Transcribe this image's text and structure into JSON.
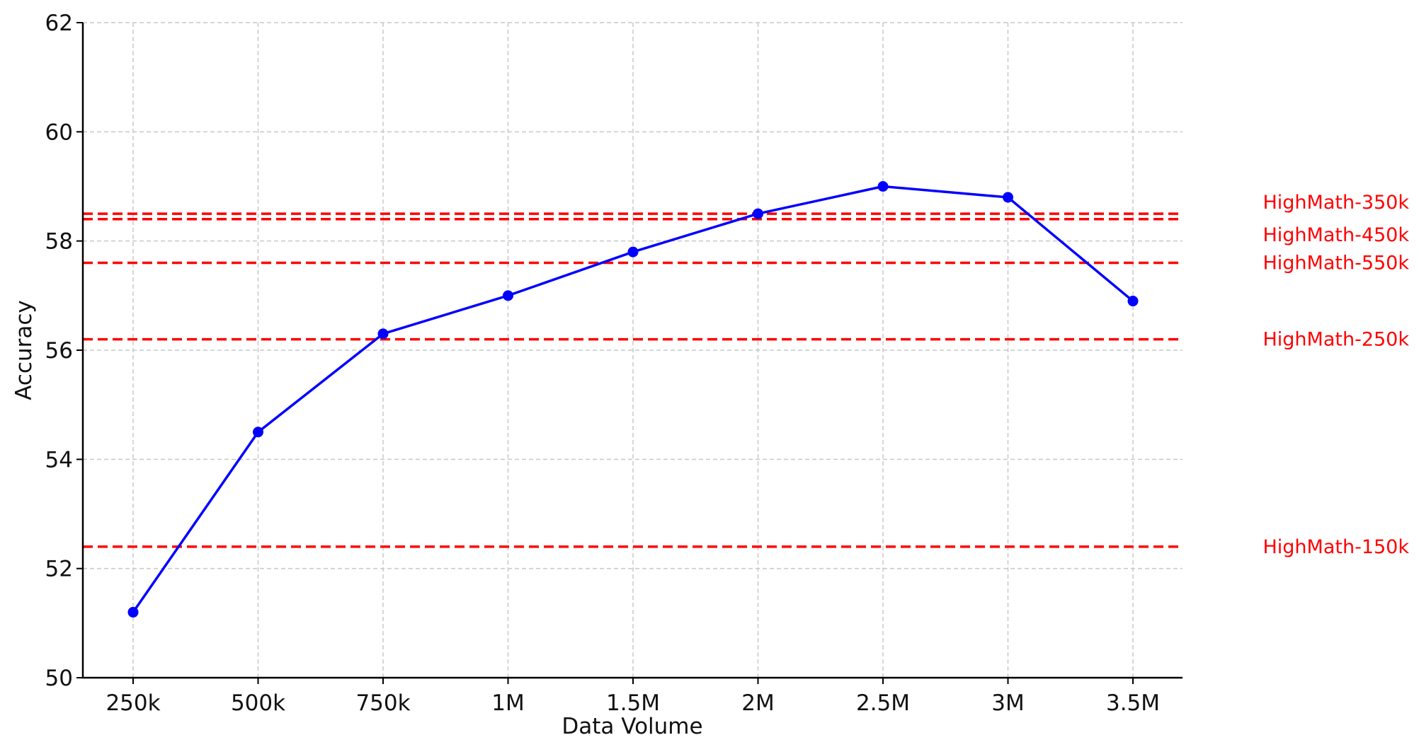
{
  "chart_data": {
    "type": "line",
    "title": "",
    "xlabel": "Data Volume",
    "ylabel": "Accuracy",
    "categories": [
      "250k",
      "500k",
      "750k",
      "1M",
      "1.5M",
      "2M",
      "2.5M",
      "3M",
      "3.5M"
    ],
    "series": [
      {
        "values": [
          51.2,
          54.5,
          56.3,
          57.0,
          57.8,
          58.5,
          59.0,
          58.8,
          56.9
        ],
        "color": "#0000ff",
        "marker": "circle"
      }
    ],
    "reference_lines": [
      {
        "label": "HighMath-350k",
        "value": 58.5,
        "color": "#ff0000",
        "style": "dashed"
      },
      {
        "label": "HighMath-450k",
        "value": 58.4,
        "color": "#ff0000",
        "style": "dashed"
      },
      {
        "label": "HighMath-550k",
        "value": 57.6,
        "color": "#ff0000",
        "style": "dashed"
      },
      {
        "label": "HighMath-250k",
        "value": 56.2,
        "color": "#ff0000",
        "style": "dashed"
      },
      {
        "label": "HighMath-150k",
        "value": 52.4,
        "color": "#ff0000",
        "style": "dashed"
      }
    ],
    "ylim": [
      50,
      62
    ],
    "yticks": [
      50,
      52,
      54,
      56,
      58,
      60,
      62
    ],
    "grid": true,
    "legend": "none"
  }
}
